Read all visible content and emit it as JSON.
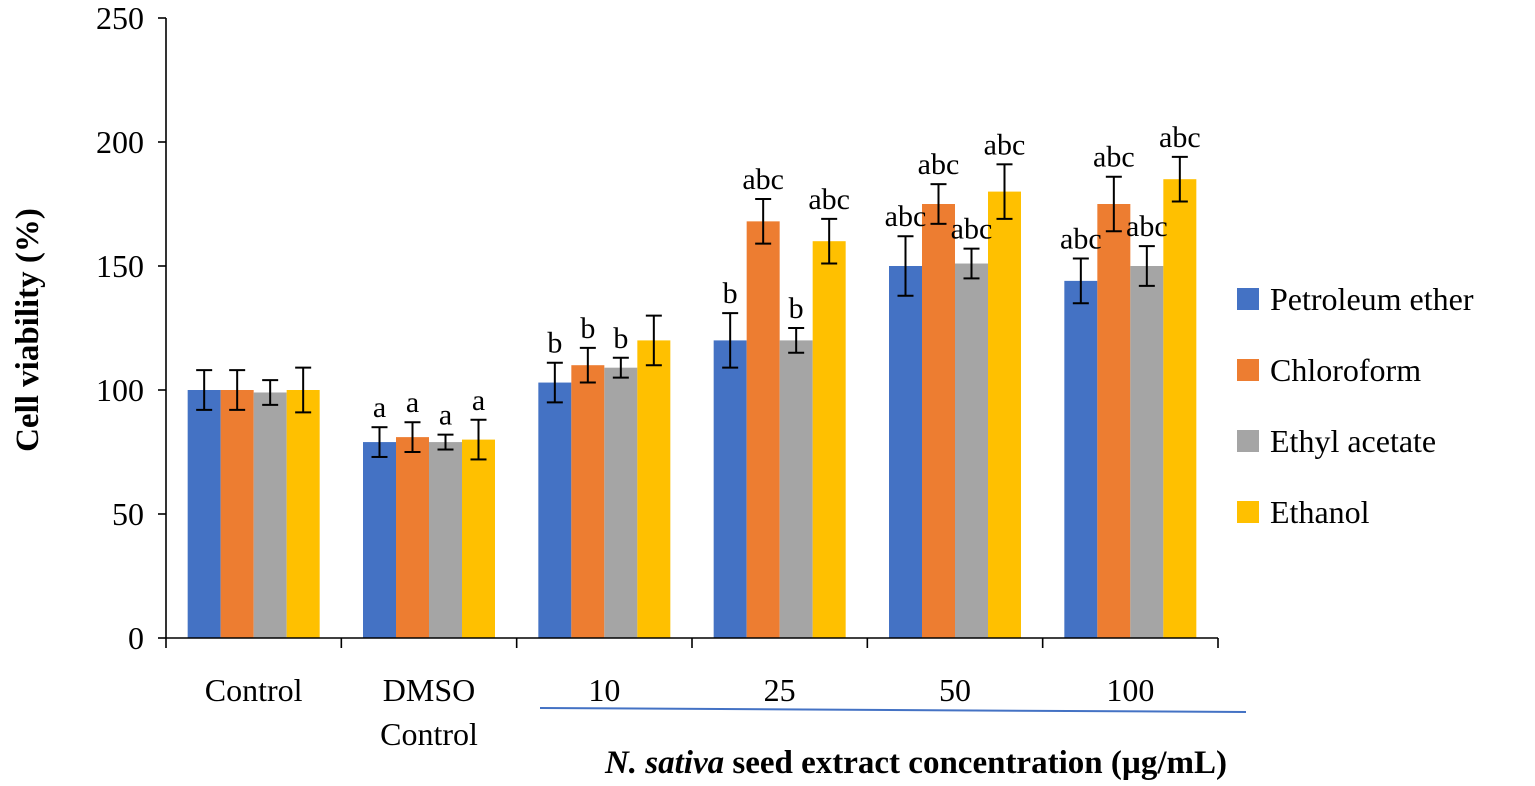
{
  "chart_data": {
    "type": "bar",
    "ylabel": "Cell viability (%)",
    "xlabel_parts": [
      {
        "text": "N. sativa",
        "italic": true
      },
      {
        "text": " seed extract concentration (µg/mL)",
        "italic": false
      }
    ],
    "categories": [
      [
        "Control"
      ],
      [
        "DMSO",
        "Control"
      ],
      [
        "10"
      ],
      [
        "25"
      ],
      [
        "50"
      ],
      [
        "100"
      ]
    ],
    "ylim": [
      0,
      250
    ],
    "yticks": [
      0,
      50,
      100,
      150,
      200,
      250
    ],
    "grid": false,
    "legend_position": "right",
    "series": [
      {
        "name": "Petroleum ether",
        "color": "#4472C4",
        "values": [
          100,
          79,
          103,
          120,
          150,
          144
        ],
        "errors": [
          8,
          6,
          8,
          11,
          12,
          9
        ],
        "labels": [
          "",
          "a",
          "b",
          "b",
          "abc",
          "abc"
        ]
      },
      {
        "name": "Chloroform",
        "color": "#ED7D31",
        "values": [
          100,
          81,
          110,
          168,
          175,
          175
        ],
        "errors": [
          8,
          6,
          7,
          9,
          8,
          11
        ],
        "labels": [
          "",
          "a",
          "b",
          "abc",
          "abc",
          "abc"
        ]
      },
      {
        "name": "Ethyl acetate",
        "color": "#A5A5A5",
        "values": [
          99,
          79,
          109,
          120,
          151,
          150
        ],
        "errors": [
          5,
          3,
          4,
          5,
          6,
          8
        ],
        "labels": [
          "",
          "a",
          "b",
          "b",
          "abc",
          "abc"
        ]
      },
      {
        "name": "Ethanol",
        "color": "#FFC000",
        "values": [
          100,
          80,
          120,
          160,
          180,
          185
        ],
        "errors": [
          9,
          8,
          10,
          9,
          11,
          9
        ],
        "labels": [
          "",
          "a",
          "",
          "abc",
          "abc",
          "abc"
        ]
      }
    ],
    "bracket_color": "#4472C4"
  }
}
